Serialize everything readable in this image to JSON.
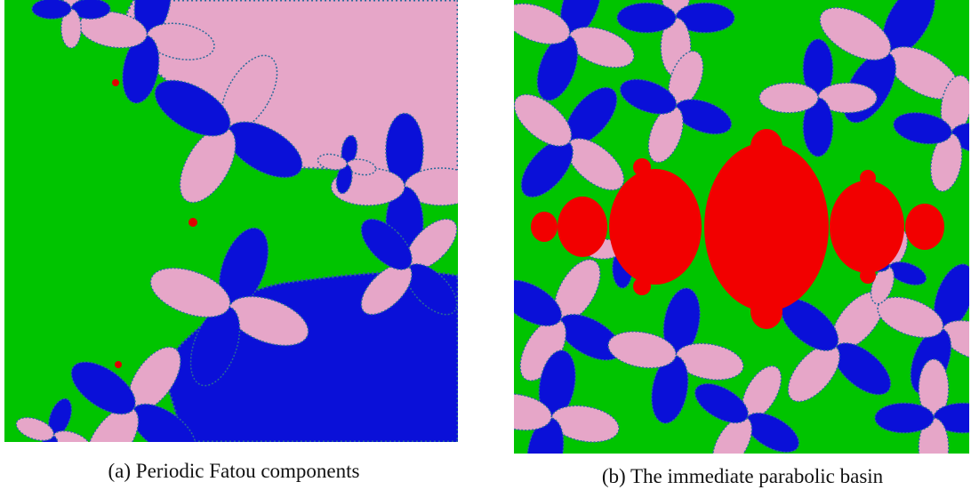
{
  "figure": {
    "panels": [
      {
        "caption": "(a) Periodic Fatou components"
      },
      {
        "caption": "(b) The immediate parabolic basin"
      }
    ]
  }
}
